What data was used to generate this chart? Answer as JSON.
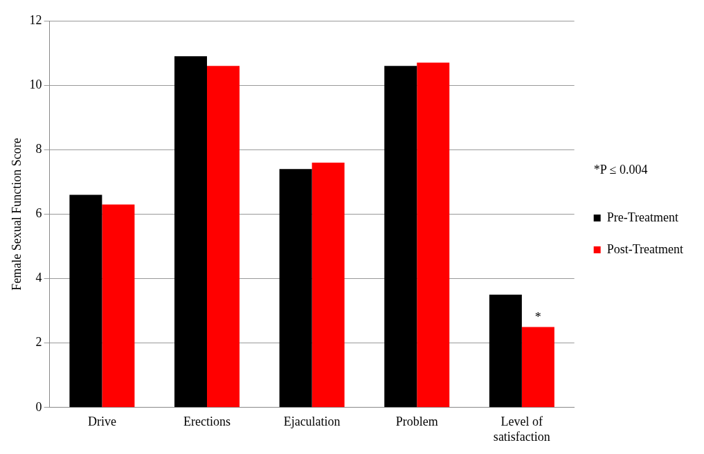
{
  "chart_data": {
    "type": "bar",
    "ylabel": "Female Sexual Function Score",
    "categories": [
      "Drive",
      "Erections",
      "Ejaculation",
      "Problem",
      "Level of satisfaction"
    ],
    "series": [
      {
        "name": "Pre-Treatment",
        "color": "#000000",
        "values": [
          6.6,
          10.9,
          7.4,
          10.6,
          3.5
        ]
      },
      {
        "name": "Post-Treatment",
        "color": "#ff0000",
        "values": [
          6.3,
          10.6,
          7.6,
          10.7,
          2.5
        ]
      }
    ],
    "ylim": [
      0,
      12
    ],
    "yticks": [
      0,
      2,
      4,
      6,
      8,
      10,
      12
    ],
    "grid": "y",
    "legend": "right",
    "annotations": [
      "*P ≤ 0.004",
      {
        "text": "*",
        "x": "Level of satisfaction",
        "y": 2.5
      }
    ]
  }
}
